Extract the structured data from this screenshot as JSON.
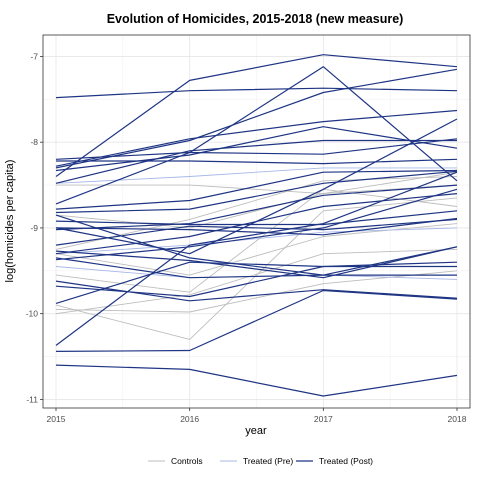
{
  "chart_data": {
    "type": "line",
    "title": "Evolution of Homicides, 2015-2018 (new measure)",
    "xlabel": "year",
    "ylabel": "log(homicides per capita)",
    "x": [
      2015,
      2016,
      2017,
      2018
    ],
    "x_tick_labels": [
      "2015",
      "2016",
      "2017",
      "2018"
    ],
    "xlim": [
      2015,
      2018
    ],
    "ylim": [
      -11.1,
      -6.75
    ],
    "y_ticks": [
      -7,
      -8,
      -9,
      -10,
      -11
    ],
    "y_tick_labels": [
      "-7",
      "-8",
      "-9",
      "-10",
      "-11"
    ],
    "grid": true,
    "legend_position": "bottom",
    "groups": [
      {
        "label": "Controls",
        "color": "#bdbdbd"
      },
      {
        "label": "Treated (Pre)",
        "color": "#a8b8e8"
      },
      {
        "label": "Treated (Post)",
        "color": "#1f3584"
      }
    ],
    "series": [
      {
        "group": 0,
        "values": [
          -9.55,
          -9.75,
          -8.55,
          -8.75
        ]
      },
      {
        "group": 0,
        "values": [
          -9.9,
          -10.3,
          -8.8,
          -8.65
        ]
      },
      {
        "group": 0,
        "values": [
          -10.0,
          -9.78,
          -9.3,
          -9.25
        ]
      },
      {
        "group": 0,
        "values": [
          -9.25,
          -8.9,
          -8.45,
          -8.4
        ]
      },
      {
        "group": 0,
        "values": [
          -8.85,
          -9.0,
          -8.6,
          -8.35
        ]
      },
      {
        "group": 0,
        "values": [
          -9.3,
          -9.55,
          -9.1,
          -8.95
        ]
      },
      {
        "group": 0,
        "values": [
          -9.95,
          -9.98,
          -9.65,
          -9.5
        ]
      },
      {
        "group": 0,
        "values": [
          -8.5,
          -8.5,
          -8.6,
          -8.5
        ]
      },
      {
        "group": 1,
        "values": [
          -8.48,
          -8.4,
          -8.3,
          -8.3
        ]
      },
      {
        "group": 1,
        "values": [
          -9.45,
          -9.58,
          -9.55,
          -9.6
        ]
      },
      {
        "group": 1,
        "values": [
          -9.3,
          -9.2,
          -9.05,
          -9.0
        ]
      },
      {
        "group": 2,
        "values": [
          -7.48,
          -7.4,
          -7.37,
          -7.4
        ]
      },
      {
        "group": 2,
        "values": [
          -8.4,
          -7.28,
          -6.98,
          -7.12
        ]
      },
      {
        "group": 2,
        "values": [
          -8.3,
          -7.98,
          -7.42,
          -7.15
        ]
      },
      {
        "group": 2,
        "values": [
          -8.2,
          -8.12,
          -7.12,
          -8.45
        ]
      },
      {
        "group": 2,
        "values": [
          -8.28,
          -7.96,
          -7.76,
          -7.63
        ]
      },
      {
        "group": 2,
        "values": [
          -8.33,
          -8.15,
          -7.82,
          -8.07
        ]
      },
      {
        "group": 2,
        "values": [
          -8.48,
          -8.1,
          -7.98,
          -7.98
        ]
      },
      {
        "group": 2,
        "values": [
          -8.22,
          -8.22,
          -8.25,
          -8.2
        ]
      },
      {
        "group": 2,
        "values": [
          -8.72,
          -8.12,
          -8.14,
          -7.96
        ]
      },
      {
        "group": 2,
        "values": [
          -8.78,
          -8.68,
          -8.35,
          -8.33
        ]
      },
      {
        "group": 2,
        "values": [
          -8.82,
          -8.78,
          -8.48,
          -8.34
        ]
      },
      {
        "group": 2,
        "values": [
          -9.02,
          -8.95,
          -8.62,
          -8.5
        ]
      },
      {
        "group": 2,
        "values": [
          -9.3,
          -9.1,
          -8.75,
          -8.6
        ]
      },
      {
        "group": 2,
        "values": [
          -8.92,
          -8.96,
          -8.96,
          -8.8
        ]
      },
      {
        "group": 2,
        "values": [
          -9.0,
          -9.3,
          -8.55,
          -7.73
        ]
      },
      {
        "group": 2,
        "values": [
          -9.0,
          -9.02,
          -9.08,
          -8.89
        ]
      },
      {
        "group": 2,
        "values": [
          -9.2,
          -8.98,
          -9.02,
          -8.9
        ]
      },
      {
        "group": 2,
        "values": [
          -8.85,
          -9.35,
          -9.55,
          -9.22
        ]
      },
      {
        "group": 2,
        "values": [
          -9.27,
          -9.38,
          -9.58,
          -9.22
        ]
      },
      {
        "group": 2,
        "values": [
          -9.35,
          -9.58,
          -9.55,
          -9.55
        ]
      },
      {
        "group": 2,
        "values": [
          -9.68,
          -9.8,
          -9.45,
          -9.45
        ]
      },
      {
        "group": 2,
        "values": [
          -9.88,
          -9.4,
          -9.45,
          -9.4
        ]
      },
      {
        "group": 2,
        "values": [
          -10.37,
          -9.2,
          -8.95,
          -8.35
        ]
      },
      {
        "group": 2,
        "values": [
          -9.62,
          -9.85,
          -9.72,
          -9.82
        ]
      },
      {
        "group": 2,
        "values": [
          -10.44,
          -10.43,
          -9.73,
          -9.83
        ]
      },
      {
        "group": 2,
        "values": [
          -10.6,
          -10.65,
          -10.96,
          -10.72
        ]
      },
      {
        "group": 2,
        "values": [
          -9.37,
          -9.22,
          -9.0,
          -8.55
        ]
      }
    ]
  }
}
